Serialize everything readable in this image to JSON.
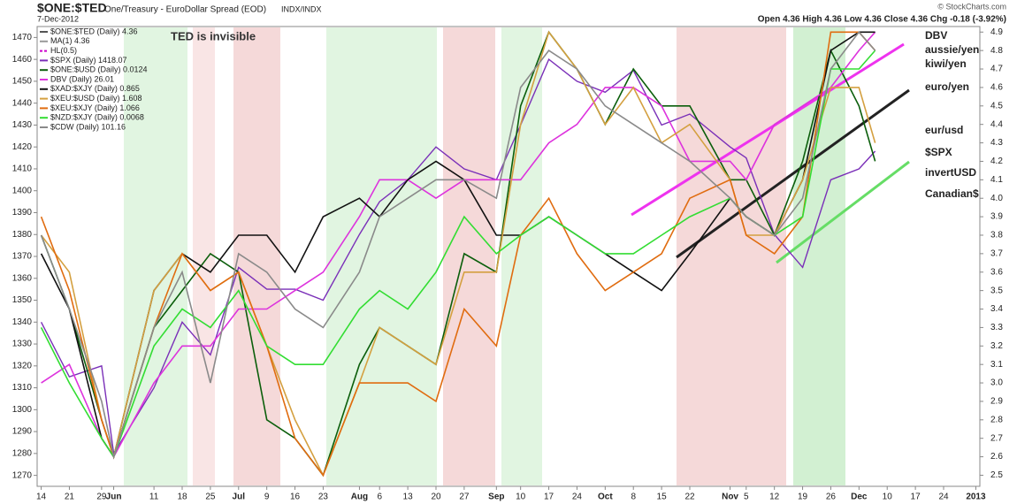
{
  "chart_data": {
    "type": "line",
    "title": "$ONE:$TED",
    "subtitle": "One/Treasury - EuroDollar Spread (EOD)",
    "exchange": "INDX/INDX",
    "date": "7-Dec-2012",
    "quote": "Open 4.36  High 4.36  Low 4.36  Close 4.36  Chg -0.18 (-3.92%)",
    "credit": "© StockCharts.com",
    "note": "TED is invisible",
    "x": [
      "2012-05-14",
      "2012-05-21",
      "2012-05-29",
      "2012-06-01",
      "2012-06-11",
      "2012-06-18",
      "2012-06-25",
      "2012-07-02",
      "2012-07-09",
      "2012-07-16",
      "2012-07-23",
      "2012-08-01",
      "2012-08-06",
      "2012-08-13",
      "2012-08-20",
      "2012-08-27",
      "2012-09-04",
      "2012-09-10",
      "2012-09-17",
      "2012-09-24",
      "2012-10-01",
      "2012-10-08",
      "2012-10-15",
      "2012-10-22",
      "2012-11-01",
      "2012-11-05",
      "2012-11-12",
      "2012-11-19",
      "2012-11-26",
      "2012-12-03",
      "2012-12-07"
    ],
    "xlim": [
      "2012-05-13",
      "2013-01-02"
    ],
    "xticks": [
      {
        "value": "2012-05-14",
        "label": "14"
      },
      {
        "value": "2012-05-21",
        "label": "21"
      },
      {
        "value": "2012-05-29",
        "label": "29"
      },
      {
        "value": "2012-06-01",
        "label": "Jun"
      },
      {
        "value": "2012-06-11",
        "label": "11"
      },
      {
        "value": "2012-06-18",
        "label": "18"
      },
      {
        "value": "2012-06-25",
        "label": "25"
      },
      {
        "value": "2012-07-02",
        "label": "Jul"
      },
      {
        "value": "2012-07-09",
        "label": "9"
      },
      {
        "value": "2012-07-16",
        "label": "16"
      },
      {
        "value": "2012-07-23",
        "label": "23"
      },
      {
        "value": "2012-08-01",
        "label": "Aug"
      },
      {
        "value": "2012-08-06",
        "label": "6"
      },
      {
        "value": "2012-08-13",
        "label": "13"
      },
      {
        "value": "2012-08-20",
        "label": "20"
      },
      {
        "value": "2012-08-27",
        "label": "27"
      },
      {
        "value": "2012-09-04",
        "label": "Sep"
      },
      {
        "value": "2012-09-10",
        "label": "10"
      },
      {
        "value": "2012-09-17",
        "label": "17"
      },
      {
        "value": "2012-09-24",
        "label": "24"
      },
      {
        "value": "2012-10-01",
        "label": "Oct"
      },
      {
        "value": "2012-10-08",
        "label": "8"
      },
      {
        "value": "2012-10-15",
        "label": "15"
      },
      {
        "value": "2012-10-22",
        "label": "22"
      },
      {
        "value": "2012-11-01",
        "label": "Nov"
      },
      {
        "value": "2012-11-05",
        "label": "5"
      },
      {
        "value": "2012-11-12",
        "label": "12"
      },
      {
        "value": "2012-11-19",
        "label": "19"
      },
      {
        "value": "2012-11-26",
        "label": "26"
      },
      {
        "value": "2012-12-03",
        "label": "Dec"
      },
      {
        "value": "2012-12-10",
        "label": "10"
      },
      {
        "value": "2012-12-17",
        "label": "17"
      },
      {
        "value": "2012-12-24",
        "label": "24"
      },
      {
        "value": "2013-01-01",
        "label": "2013"
      }
    ],
    "ylim": [
      1265,
      1475
    ],
    "yticks": [
      1270,
      1280,
      1290,
      1300,
      1310,
      1320,
      1330,
      1340,
      1350,
      1360,
      1370,
      1380,
      1390,
      1400,
      1410,
      1420,
      1430,
      1440,
      1450,
      1460,
      1470
    ],
    "y2lim": [
      2.44,
      4.93
    ],
    "y2ticks": [
      2.5,
      2.6,
      2.7,
      2.8,
      2.9,
      {
        "value": 3,
        "label": "3.0"
      },
      3.1,
      3.2,
      3.3,
      3.4,
      3.5,
      3.6,
      3.7,
      3.8,
      3.9,
      {
        "value": 4,
        "label": "4.0"
      },
      4.1,
      4.2,
      4.3,
      4.4,
      4.5,
      4.6,
      4.7,
      4.8,
      4.9
    ],
    "legend_only": [
      {
        "name": "$ONE:$TED (Daily) 4.36",
        "color": "#555555"
      },
      {
        "name": "MA(1) 4.36",
        "color": "#999999"
      },
      {
        "name": "HL(0.5)",
        "color": "#cc00cc"
      }
    ],
    "series": [
      {
        "name": "$SPX (Daily) 1418.07",
        "color": "#7a2fb8",
        "values": [
          1340,
          1315,
          1320,
          1280,
          1310,
          1340,
          1325,
          1365,
          1355,
          1355,
          1350,
          1380,
          1395,
          1405,
          1420,
          1410,
          1405,
          1430,
          1460,
          1450,
          1445,
          1455,
          1430,
          1435,
          1420,
          1415,
          1380,
          1365,
          1405,
          1410,
          1418.07
        ]
      },
      {
        "name": "$ONE:$USD (Daily) 0.0124",
        "color": "#0b5e0b",
        "axis": "y2",
        "values": [
          3.8,
          3.4,
          2.8,
          2.6,
          3.3,
          3.5,
          3.7,
          3.6,
          2.8,
          2.7,
          2.5,
          3.1,
          3.3,
          3.2,
          3.1,
          3.7,
          3.6,
          4.5,
          4.9,
          4.7,
          4.4,
          4.7,
          4.5,
          4.5,
          4.1,
          4.1,
          3.8,
          4.2,
          4.8,
          4.5,
          4.2
        ]
      },
      {
        "name": "DBV (Daily) 26.01",
        "color": "#dd33dd",
        "axis": "y2",
        "values": [
          3.0,
          3.1,
          2.7,
          2.6,
          3.0,
          3.2,
          3.2,
          3.4,
          3.4,
          3.5,
          3.6,
          3.9,
          4.1,
          4.1,
          4.0,
          4.1,
          4.1,
          4.1,
          4.3,
          4.4,
          4.6,
          4.6,
          4.5,
          4.2,
          4.2,
          4.1,
          4.4,
          4.5,
          4.6,
          4.8,
          4.9
        ]
      },
      {
        "name": "$XAD:$XJY (Daily) 0.865",
        "color": "#111111",
        "axis": "y2",
        "values": [
          3.7,
          3.4,
          2.7,
          2.6,
          3.5,
          3.7,
          3.6,
          3.8,
          3.8,
          3.6,
          3.9,
          4.0,
          3.9,
          4.1,
          4.2,
          4.1,
          3.8,
          3.8,
          3.9,
          3.8,
          3.7,
          3.6,
          3.5,
          3.7,
          4.0,
          3.9,
          3.8,
          4.1,
          4.8,
          4.9,
          4.9
        ]
      },
      {
        "name": "$XEU:$USD (Daily) 1.608",
        "color": "#d4a040",
        "axis": "y2",
        "values": [
          3.8,
          3.6,
          2.8,
          2.6,
          3.5,
          3.7,
          3.5,
          3.6,
          3.2,
          2.8,
          2.5,
          3.0,
          3.3,
          3.2,
          3.1,
          3.6,
          3.6,
          4.4,
          4.9,
          4.7,
          4.4,
          4.6,
          4.3,
          4.4,
          4.1,
          3.8,
          3.8,
          4.1,
          4.6,
          4.6,
          4.3
        ]
      },
      {
        "name": "$XEU:$XJY (Daily) 1.066",
        "color": "#e06c10",
        "axis": "y2",
        "values": [
          3.9,
          3.5,
          2.8,
          2.6,
          3.3,
          3.7,
          3.5,
          3.6,
          3.2,
          2.7,
          2.5,
          3.0,
          3.0,
          3.0,
          2.9,
          3.4,
          3.2,
          3.8,
          4.0,
          3.7,
          3.5,
          3.6,
          3.7,
          4.0,
          4.1,
          3.8,
          3.7,
          3.9,
          4.9,
          4.9,
          4.8
        ]
      },
      {
        "name": "$NZD:$XJY (Daily) 0.0068",
        "color": "#33dd33",
        "axis": "y2",
        "values": [
          3.3,
          3.0,
          2.7,
          2.6,
          3.2,
          3.4,
          3.3,
          3.5,
          3.2,
          3.1,
          3.1,
          3.4,
          3.5,
          3.4,
          3.6,
          3.9,
          3.7,
          3.8,
          3.9,
          3.8,
          3.7,
          3.7,
          3.8,
          3.9,
          4.0,
          3.9,
          3.8,
          3.9,
          4.7,
          4.7,
          4.8
        ]
      },
      {
        "name": "$CDW (Daily) 101.16",
        "color": "#8a8a8a",
        "axis": "y2",
        "values": [
          3.8,
          3.4,
          2.9,
          2.6,
          3.3,
          3.6,
          3.0,
          3.7,
          3.6,
          3.4,
          3.3,
          3.6,
          3.9,
          4.0,
          4.1,
          4.1,
          4.0,
          4.6,
          4.8,
          4.7,
          4.5,
          4.4,
          4.3,
          4.2,
          4.0,
          3.9,
          3.8,
          4.0,
          4.7,
          4.9,
          4.8
        ]
      }
    ],
    "annotations": [
      {
        "text": "DBV",
        "color": "#dd22dd"
      },
      {
        "text": "aussie/yen",
        "color": "#222222"
      },
      {
        "text": "kiwi/yen",
        "color": "#22cc22"
      },
      {
        "text": "euro/yen",
        "color": "#e06c10"
      },
      {
        "text": "eur/usd",
        "color": "#d4a040"
      },
      {
        "text": "$SPX",
        "color": "#7a2fb8"
      },
      {
        "text": "invertUSD",
        "color": "#0b6e0b"
      },
      {
        "text": "Canadian$",
        "color": "#8a8a8a"
      }
    ]
  }
}
